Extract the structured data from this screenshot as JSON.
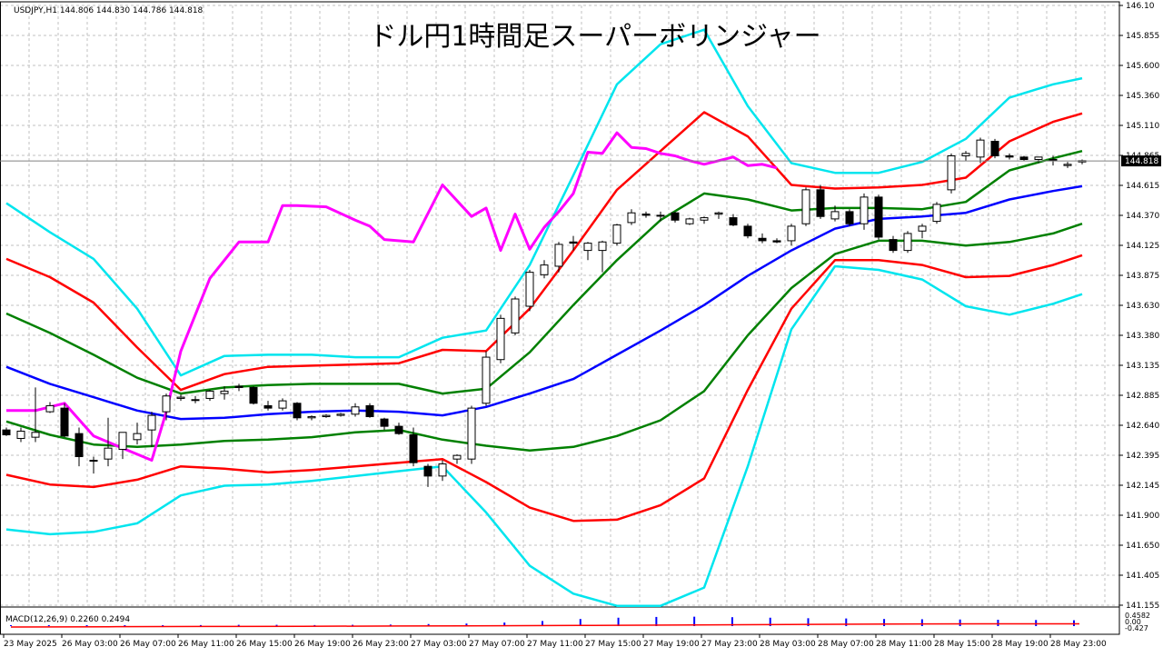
{
  "window": {
    "symbol_header": "USDJPY,H1  144.806 144.830 144.786 144.818",
    "title": "ドル円1時間足スーパーボリンジャー",
    "current_price_label": "144.818"
  },
  "macd": {
    "label": "MACD(12,26,9) 0.2260 0.2494",
    "scale_labels": [
      "0.4582",
      "0.00",
      "-0.427"
    ]
  },
  "colors": {
    "background": "#ffffff",
    "grid": "#c0c0c0",
    "sma": "#0000ff",
    "sigma1": "#008000",
    "sigma2": "#ff0000",
    "sigma3": "#00e5ee",
    "lagging": "#ff00ff",
    "bull_body": "#ffffff",
    "bear_body": "#000000",
    "macd_hist": "#0000ff",
    "macd_signal": "#ff0000"
  },
  "chart_data": {
    "type": "candlestick",
    "title": "ドル円1時間足スーパーボリンジャー",
    "ylim": [
      141.155,
      146.1
    ],
    "y_ticks": [
      "146.10",
      "145.855",
      "145.600",
      "145.360",
      "145.110",
      "144.865",
      "144.615",
      "144.370",
      "144.125",
      "143.875",
      "143.630",
      "143.380",
      "143.135",
      "142.885",
      "142.640",
      "142.395",
      "142.145",
      "141.900",
      "141.650",
      "141.405",
      "141.155"
    ],
    "x_ticks": [
      "23 May 2025",
      "26 May 03:00",
      "26 May 07:00",
      "26 May 11:00",
      "26 May 15:00",
      "26 May 19:00",
      "26 May 23:00",
      "27 May 03:00",
      "27 May 07:00",
      "27 May 11:00",
      "27 May 15:00",
      "27 May 19:00",
      "27 May 23:00",
      "28 May 03:00",
      "28 May 07:00",
      "28 May 11:00",
      "28 May 15:00",
      "28 May 19:00",
      "28 May 23:00"
    ],
    "candles": [
      [
        142.6,
        142.62,
        142.55,
        142.56
      ],
      [
        142.53,
        142.62,
        142.5,
        142.59
      ],
      [
        142.54,
        142.95,
        142.5,
        142.58
      ],
      [
        142.75,
        142.83,
        142.74,
        142.8
      ],
      [
        142.78,
        142.82,
        142.54,
        142.55
      ],
      [
        142.57,
        142.62,
        142.3,
        142.38
      ],
      [
        142.35,
        142.38,
        142.24,
        142.35
      ],
      [
        142.36,
        142.7,
        142.3,
        142.45
      ],
      [
        142.44,
        142.58,
        142.36,
        142.58
      ],
      [
        142.52,
        142.66,
        142.48,
        142.57
      ],
      [
        142.6,
        142.75,
        142.46,
        142.72
      ],
      [
        142.75,
        142.9,
        142.68,
        142.88
      ],
      [
        142.86,
        142.89,
        142.84,
        142.87
      ],
      [
        142.85,
        142.88,
        142.82,
        142.85
      ],
      [
        142.86,
        142.93,
        142.84,
        142.92
      ],
      [
        142.9,
        142.96,
        142.85,
        142.92
      ],
      [
        142.96,
        142.98,
        142.92,
        142.95
      ],
      [
        142.95,
        142.96,
        142.81,
        142.82
      ],
      [
        142.8,
        142.84,
        142.76,
        142.78
      ],
      [
        142.78,
        142.86,
        142.76,
        142.84
      ],
      [
        142.82,
        142.83,
        142.68,
        142.7
      ],
      [
        142.7,
        142.72,
        142.68,
        142.71
      ],
      [
        142.71,
        142.73,
        142.7,
        142.72
      ],
      [
        142.72,
        142.74,
        142.71,
        142.73
      ],
      [
        142.73,
        142.82,
        142.71,
        142.79
      ],
      [
        142.8,
        142.82,
        142.7,
        142.71
      ],
      [
        142.69,
        142.7,
        142.6,
        142.63
      ],
      [
        142.63,
        142.66,
        142.56,
        142.57
      ],
      [
        142.56,
        142.62,
        142.3,
        142.33
      ],
      [
        142.3,
        142.32,
        142.13,
        142.22
      ],
      [
        142.22,
        142.35,
        142.18,
        142.32
      ],
      [
        142.36,
        142.4,
        142.32,
        142.39
      ],
      [
        142.36,
        142.8,
        142.32,
        142.78
      ],
      [
        142.82,
        143.25,
        142.8,
        143.2
      ],
      [
        143.18,
        143.55,
        143.15,
        143.52
      ],
      [
        143.4,
        143.7,
        143.38,
        143.68
      ],
      [
        143.62,
        143.92,
        143.58,
        143.9
      ],
      [
        143.88,
        144.0,
        143.85,
        143.96
      ],
      [
        143.95,
        144.15,
        143.9,
        144.13
      ],
      [
        144.15,
        144.2,
        144.08,
        144.14
      ],
      [
        144.08,
        144.15,
        144.0,
        144.14
      ],
      [
        144.08,
        144.16,
        143.9,
        144.15
      ],
      [
        144.14,
        144.3,
        144.12,
        144.29
      ],
      [
        144.31,
        144.42,
        144.29,
        144.39
      ],
      [
        144.38,
        144.4,
        144.35,
        144.37
      ],
      [
        144.37,
        144.4,
        144.32,
        144.37
      ],
      [
        144.39,
        144.4,
        144.31,
        144.33
      ],
      [
        144.3,
        144.35,
        144.29,
        144.34
      ],
      [
        144.33,
        144.36,
        144.3,
        144.35
      ],
      [
        144.38,
        144.4,
        144.34,
        144.39
      ],
      [
        144.35,
        144.38,
        144.28,
        144.29
      ],
      [
        144.28,
        144.3,
        144.18,
        144.2
      ],
      [
        144.18,
        144.22,
        144.14,
        144.16
      ],
      [
        144.16,
        144.18,
        144.14,
        144.15
      ],
      [
        144.16,
        144.3,
        144.12,
        144.28
      ],
      [
        144.3,
        144.6,
        144.28,
        144.58
      ],
      [
        144.58,
        144.62,
        144.34,
        144.36
      ],
      [
        144.34,
        144.45,
        144.32,
        144.4
      ],
      [
        144.4,
        144.42,
        144.28,
        144.3
      ],
      [
        144.3,
        144.55,
        144.25,
        144.52
      ],
      [
        144.52,
        144.54,
        144.17,
        144.19
      ],
      [
        144.17,
        144.2,
        144.06,
        144.08
      ],
      [
        144.08,
        144.24,
        144.06,
        144.22
      ],
      [
        144.24,
        144.3,
        144.18,
        144.28
      ],
      [
        144.32,
        144.48,
        144.3,
        144.46
      ],
      [
        144.58,
        144.88,
        144.55,
        144.86
      ],
      [
        144.86,
        144.9,
        144.82,
        144.88
      ],
      [
        144.85,
        145.01,
        144.8,
        144.99
      ],
      [
        144.98,
        145.0,
        144.84,
        144.86
      ],
      [
        144.86,
        144.88,
        144.83,
        144.85
      ],
      [
        144.85,
        144.86,
        144.82,
        144.83
      ],
      [
        144.83,
        144.85,
        144.8,
        144.85
      ],
      [
        144.83,
        144.86,
        144.78,
        144.82
      ],
      [
        144.78,
        144.81,
        144.76,
        144.79
      ],
      [
        144.81,
        144.83,
        144.79,
        144.82
      ]
    ],
    "bands_x": [
      0,
      3,
      6,
      9,
      12,
      15,
      18,
      21,
      24,
      27,
      30,
      33,
      36,
      39,
      42,
      45,
      48,
      51,
      54,
      57,
      60,
      63,
      66,
      69,
      72,
      74
    ],
    "sma": [
      143.12,
      142.98,
      142.87,
      142.76,
      142.69,
      142.7,
      142.73,
      142.75,
      142.76,
      142.75,
      142.72,
      142.79,
      142.9,
      143.02,
      143.22,
      143.42,
      143.63,
      143.87,
      144.08,
      144.26,
      144.34,
      144.36,
      144.39,
      144.5,
      144.57,
      144.61
    ],
    "sigma1_u": [
      142.67,
      142.56,
      142.48,
      142.46,
      142.48,
      142.51,
      142.52,
      142.54,
      142.58,
      142.6,
      142.52,
      142.47,
      142.43,
      142.46,
      142.55,
      142.68,
      142.92,
      143.38,
      143.77,
      144.05,
      144.16,
      144.16,
      144.12,
      144.15,
      144.22,
      144.3
    ],
    "sigma1_l": [
      143.56,
      143.4,
      143.22,
      143.03,
      142.9,
      142.95,
      142.97,
      142.98,
      142.98,
      142.98,
      142.9,
      142.94,
      143.24,
      143.63,
      144.0,
      144.33,
      144.55,
      144.5,
      144.41,
      144.43,
      144.43,
      144.42,
      144.48,
      144.74,
      144.84,
      144.9
    ],
    "sigma2_u": [
      142.23,
      142.15,
      142.13,
      142.19,
      142.3,
      142.28,
      142.25,
      142.27,
      142.3,
      142.33,
      142.36,
      142.17,
      141.96,
      141.85,
      141.86,
      141.98,
      142.2,
      142.93,
      143.6,
      144.0,
      144.0,
      143.96,
      143.86,
      143.87,
      143.96,
      144.04
    ],
    "sigma2_l": [
      144.01,
      143.86,
      143.65,
      143.28,
      142.93,
      143.06,
      143.12,
      143.13,
      143.14,
      143.15,
      143.26,
      143.25,
      143.6,
      144.08,
      144.58,
      144.9,
      145.22,
      145.02,
      144.62,
      144.59,
      144.6,
      144.62,
      144.68,
      144.98,
      145.14,
      145.21
    ],
    "sigma3_u": [
      141.78,
      141.74,
      141.76,
      141.83,
      142.06,
      142.14,
      142.15,
      142.18,
      142.22,
      142.26,
      142.3,
      141.92,
      141.48,
      141.25,
      141.15,
      141.15,
      141.3,
      142.3,
      143.43,
      143.95,
      143.92,
      143.84,
      143.62,
      143.55,
      143.64,
      143.72
    ],
    "sigma3_l": [
      144.47,
      144.23,
      144.01,
      143.6,
      143.05,
      143.21,
      143.22,
      143.22,
      143.2,
      143.2,
      143.36,
      143.42,
      143.96,
      144.7,
      145.45,
      145.78,
      145.9,
      145.27,
      144.8,
      144.72,
      144.72,
      144.81,
      145.0,
      145.34,
      145.45,
      145.5
    ],
    "lagging_x": [
      0,
      2,
      4,
      6,
      8,
      10,
      11,
      12,
      14,
      16,
      18,
      19,
      20,
      22,
      24,
      25,
      26,
      28,
      30,
      32,
      33,
      34,
      35,
      36,
      37,
      38,
      39,
      40,
      41,
      42,
      43,
      44,
      45,
      46,
      47,
      48,
      50,
      51,
      52,
      53
    ],
    "lagging": [
      142.76,
      142.76,
      142.82,
      142.55,
      142.45,
      142.35,
      142.75,
      143.25,
      143.85,
      144.15,
      144.15,
      144.45,
      144.45,
      144.44,
      144.33,
      144.28,
      144.17,
      144.15,
      144.62,
      144.36,
      144.43,
      144.08,
      144.38,
      144.09,
      144.27,
      144.4,
      144.55,
      144.89,
      144.88,
      145.05,
      144.93,
      144.92,
      144.88,
      144.86,
      144.82,
      144.79,
      144.85,
      144.78,
      144.79,
      144.76
    ],
    "macd_hist": [
      0.02,
      0.03,
      0.03,
      0.02,
      0.03,
      0.04,
      0.05,
      0.05,
      0.04,
      0.05,
      0.06,
      0.08,
      0.1,
      0.14,
      0.2,
      0.28,
      0.33,
      0.36,
      0.37,
      0.35,
      0.33,
      0.31,
      0.3,
      0.28,
      0.27,
      0.26,
      0.25,
      0.24,
      0.23
    ],
    "macd_signal": [
      0.0,
      0.02,
      0.04,
      0.06,
      0.08,
      0.1,
      0.13,
      0.16,
      0.2,
      0.23,
      0.25,
      0.25
    ]
  }
}
